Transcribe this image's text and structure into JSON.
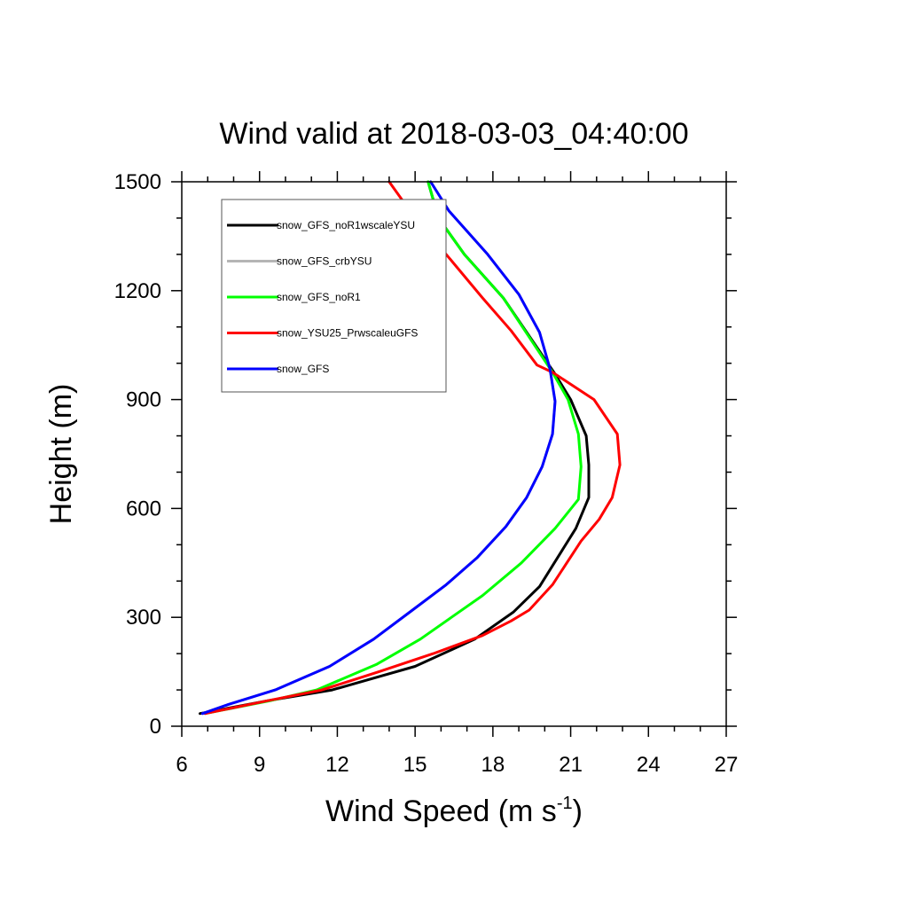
{
  "chart_data": {
    "type": "line",
    "title": "Wind valid at 2018-03-03_04:40:00",
    "xlabel": "Wind Speed (m s",
    "xlabel_sup": "-1",
    "xlabel_end": ")",
    "ylabel": "Height (m)",
    "xlim": [
      6,
      27
    ],
    "ylim": [
      0,
      1500
    ],
    "xticks": [
      6,
      9,
      12,
      15,
      18,
      21,
      24,
      27
    ],
    "yticks": [
      0,
      300,
      600,
      900,
      1200,
      1500
    ],
    "legend_position": "top-left",
    "series": [
      {
        "name": "snow_GFS_noR1wscaleYSU",
        "color": "#000000",
        "points": [
          [
            6.7,
            35
          ],
          [
            9.3,
            70
          ],
          [
            11.8,
            100
          ],
          [
            15.0,
            165
          ],
          [
            17.3,
            240
          ],
          [
            18.8,
            315
          ],
          [
            19.8,
            385
          ],
          [
            21.2,
            545
          ],
          [
            21.7,
            630
          ],
          [
            21.7,
            720
          ],
          [
            21.6,
            800
          ],
          [
            21.0,
            900
          ],
          [
            20.4,
            970
          ],
          [
            18.4,
            1180
          ],
          [
            16.9,
            1300
          ],
          [
            15.9,
            1400
          ],
          [
            15.5,
            1500
          ]
        ]
      },
      {
        "name": "snow_GFS_crbYSU",
        "color": "#b5b5b5",
        "points": [
          [
            6.8,
            35
          ],
          [
            7.8,
            60
          ],
          [
            9.6,
            100
          ],
          [
            11.7,
            165
          ],
          [
            13.4,
            240
          ],
          [
            14.9,
            320
          ],
          [
            16.2,
            390
          ],
          [
            17.4,
            465
          ],
          [
            18.5,
            550
          ],
          [
            19.3,
            630
          ],
          [
            19.9,
            715
          ],
          [
            20.3,
            805
          ],
          [
            20.4,
            895
          ],
          [
            20.2,
            985
          ],
          [
            19.8,
            1085
          ],
          [
            19.0,
            1190
          ],
          [
            17.8,
            1300
          ],
          [
            16.3,
            1420
          ],
          [
            15.6,
            1500
          ]
        ]
      },
      {
        "name": "snow_GFS_noR1",
        "color": "#00ff00",
        "points": [
          [
            6.9,
            35
          ],
          [
            9.4,
            70
          ],
          [
            11.2,
            100
          ],
          [
            13.5,
            170
          ],
          [
            15.2,
            240
          ],
          [
            16.4,
            300
          ],
          [
            17.6,
            360
          ],
          [
            19.1,
            450
          ],
          [
            20.4,
            545
          ],
          [
            21.3,
            625
          ],
          [
            21.4,
            715
          ],
          [
            21.3,
            805
          ],
          [
            20.9,
            900
          ],
          [
            20.3,
            975
          ],
          [
            18.4,
            1180
          ],
          [
            16.9,
            1300
          ],
          [
            15.9,
            1400
          ],
          [
            15.5,
            1500
          ]
        ]
      },
      {
        "name": "snow_YSU25_PrwscaleuGFS",
        "color": "#ff0000",
        "points": [
          [
            6.9,
            35
          ],
          [
            9.3,
            70
          ],
          [
            11.4,
            100
          ],
          [
            13.6,
            150
          ],
          [
            15.7,
            200
          ],
          [
            17.6,
            250
          ],
          [
            18.7,
            290
          ],
          [
            19.4,
            320
          ],
          [
            20.3,
            390
          ],
          [
            21.4,
            510
          ],
          [
            22.1,
            570
          ],
          [
            22.6,
            630
          ],
          [
            22.9,
            720
          ],
          [
            22.8,
            805
          ],
          [
            21.9,
            900
          ],
          [
            20.3,
            975
          ],
          [
            19.7,
            995
          ],
          [
            18.7,
            1090
          ],
          [
            17.6,
            1180
          ],
          [
            16.2,
            1300
          ],
          [
            14.8,
            1420
          ],
          [
            14.0,
            1500
          ]
        ]
      },
      {
        "name": "snow_GFS",
        "color": "#0000ff",
        "points": [
          [
            6.8,
            35
          ],
          [
            7.8,
            60
          ],
          [
            9.6,
            100
          ],
          [
            11.7,
            165
          ],
          [
            13.4,
            240
          ],
          [
            14.9,
            320
          ],
          [
            16.2,
            390
          ],
          [
            17.4,
            465
          ],
          [
            18.5,
            550
          ],
          [
            19.3,
            630
          ],
          [
            19.9,
            715
          ],
          [
            20.3,
            805
          ],
          [
            20.4,
            895
          ],
          [
            20.2,
            985
          ],
          [
            19.8,
            1085
          ],
          [
            19.0,
            1190
          ],
          [
            17.8,
            1300
          ],
          [
            16.3,
            1420
          ],
          [
            15.6,
            1500
          ]
        ]
      }
    ]
  }
}
